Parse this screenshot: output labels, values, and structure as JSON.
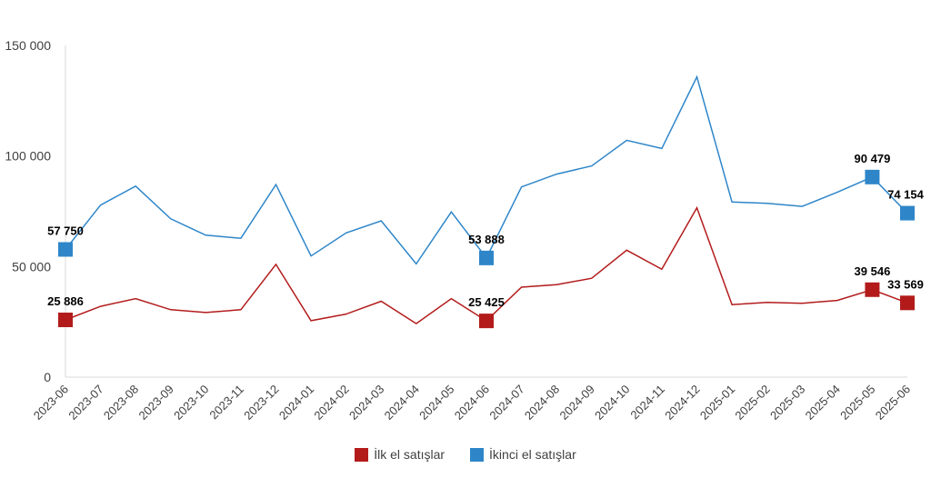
{
  "chart_data": {
    "type": "line",
    "categories": [
      "2023-06",
      "2023-07",
      "2023-08",
      "2023-09",
      "2023-10",
      "2023-11",
      "2023-12",
      "2024-01",
      "2024-02",
      "2024-03",
      "2024-04",
      "2024-05",
      "2024-06",
      "2024-07",
      "2024-08",
      "2024-09",
      "2024-10",
      "2024-11",
      "2024-12",
      "2025-01",
      "2025-02",
      "2025-03",
      "2025-04",
      "2025-05",
      "2025-06"
    ],
    "ylim": [
      0,
      150000
    ],
    "yticks": [
      0,
      50000,
      100000,
      150000
    ],
    "ytick_labels": [
      "0",
      "50 000",
      "100 000",
      "150 000"
    ],
    "grid": false,
    "legend_position": "bottom",
    "series": [
      {
        "name": "İlk el satışlar",
        "color": "#b31b1b",
        "values": [
          25886,
          32000,
          35500,
          30500,
          29200,
          30500,
          51000,
          25500,
          28500,
          34300,
          24200,
          35500,
          25425,
          40700,
          41800,
          44700,
          57400,
          48800,
          76600,
          32800,
          33800,
          33400,
          34700,
          39546,
          33569
        ]
      },
      {
        "name": "İkinci el satışlar",
        "color": "#2e86c9",
        "values": [
          57750,
          77800,
          86400,
          71600,
          64200,
          62800,
          87100,
          54800,
          65200,
          70700,
          51200,
          74700,
          53888,
          86000,
          91800,
          95500,
          107100,
          103400,
          135800,
          79200,
          78600,
          77200,
          83600,
          90479,
          74154
        ]
      }
    ],
    "highlights": [
      {
        "series": 0,
        "index": 0,
        "label": "25 886"
      },
      {
        "series": 0,
        "index": 12,
        "label": "25 425"
      },
      {
        "series": 0,
        "index": 23,
        "label": "39 546"
      },
      {
        "series": 0,
        "index": 24,
        "label": "33 569"
      },
      {
        "series": 1,
        "index": 0,
        "label": "57 750"
      },
      {
        "series": 1,
        "index": 12,
        "label": "53 888"
      },
      {
        "series": 1,
        "index": 23,
        "label": "90 479"
      },
      {
        "series": 1,
        "index": 24,
        "label": "74 154"
      }
    ]
  }
}
